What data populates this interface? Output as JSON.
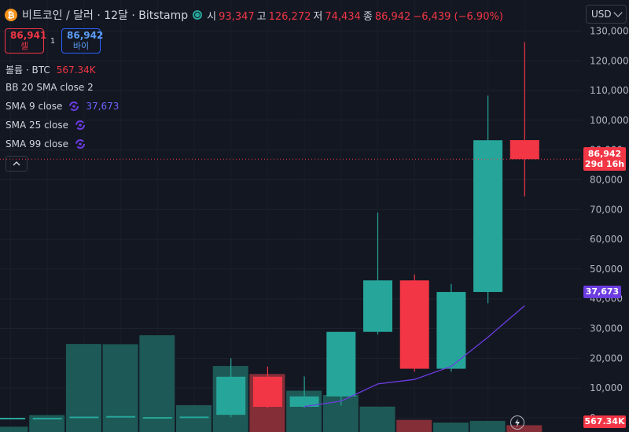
{
  "header": {
    "logo": "₿",
    "title": "비트코인 / 달러 · 12달 · Bitstamp",
    "ohlc": [
      {
        "label": "시",
        "value": "93,347"
      },
      {
        "label": "고",
        "value": "126,272"
      },
      {
        "label": "저",
        "value": "74,434"
      },
      {
        "label": "종",
        "value": "86,942"
      }
    ],
    "change": "−6,439 (−6.90%)"
  },
  "trade": {
    "sell_price": "86,941",
    "sell_label": "셀",
    "spread": "1",
    "buy_price": "86,942",
    "buy_label": "바이"
  },
  "indicators": {
    "volume_label": "볼륨 · BTC",
    "volume_value": "567.34K",
    "bb_label": "BB 20 SMA close 2",
    "sma9_label": "SMA 9 close",
    "sma9_value": "37,673",
    "sma25_label": "SMA 25 close",
    "sma99_label": "SMA 99 close"
  },
  "currency": "USD",
  "axis_tags": {
    "price": "86,942",
    "countdown": "29d 16h",
    "sma": "37,673",
    "volume": "567.34K"
  },
  "colors": {
    "up": "#26a69a",
    "down": "#f23645",
    "sma9": "#6c3ce1",
    "background": "#131722"
  },
  "chart_data": {
    "type": "candlestick",
    "ylim": [
      -4500,
      132500
    ],
    "y_ticks": [
      0,
      10000,
      20000,
      30000,
      40000,
      50000,
      60000,
      70000,
      80000,
      90000,
      100000,
      110000,
      120000,
      130000
    ],
    "y_tick_labels": [
      "0",
      "10,000",
      "20,000",
      "30,000",
      "40,000",
      "50,000",
      "60,000",
      "70,000",
      "80,000",
      "90,000",
      "100,000",
      "110,000",
      "120,000",
      "130,000"
    ],
    "last_price": 86942,
    "candles": [
      {
        "o": 0,
        "h": 0,
        "l": 0,
        "c": 0
      },
      {
        "o": 0,
        "h": 0,
        "l": 0,
        "c": 0
      },
      {
        "o": 400,
        "h": 400,
        "l": 400,
        "c": 400
      },
      {
        "o": 600,
        "h": 600,
        "l": 600,
        "c": 600
      },
      {
        "o": 250,
        "h": 250,
        "l": 250,
        "c": 250
      },
      {
        "o": 430,
        "h": 430,
        "l": 430,
        "c": 430
      },
      {
        "o": 1000,
        "h": 20000,
        "l": 200,
        "c": 13800
      },
      {
        "o": 13800,
        "h": 17200,
        "l": 3200,
        "c": 3700
      },
      {
        "o": 3700,
        "h": 13900,
        "l": 3300,
        "c": 7200
      },
      {
        "o": 7200,
        "h": 28800,
        "l": 4100,
        "c": 28900
      },
      {
        "o": 28900,
        "h": 69000,
        "l": 28000,
        "c": 46200
      },
      {
        "o": 46200,
        "h": 48200,
        "l": 15500,
        "c": 16500
      },
      {
        "o": 16500,
        "h": 45000,
        "l": 15500,
        "c": 42300
      },
      {
        "o": 42300,
        "h": 108300,
        "l": 38500,
        "c": 93300
      },
      {
        "o": 93347,
        "h": 126272,
        "l": 74434,
        "c": 86942
      }
    ],
    "volume": [
      0.22,
      0.7,
      3.64,
      3.63,
      4.0,
      1.11,
      2.73,
      2.4,
      1.71,
      1.53,
      1.05,
      0.5,
      0.39,
      0.46,
      0.28
    ],
    "volume_max": 4.1,
    "sma9": {
      "start_index": 8,
      "values": [
        3800,
        5600,
        11400,
        12900,
        17300,
        27100,
        37673
      ]
    }
  }
}
